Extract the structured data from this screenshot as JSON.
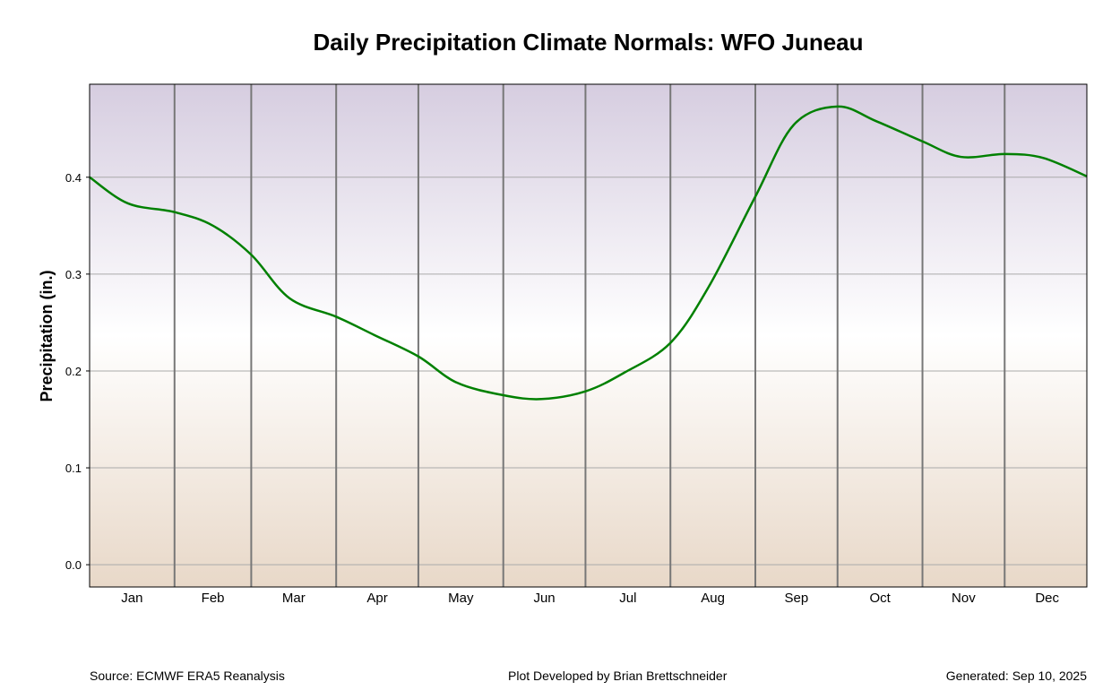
{
  "chart_data": {
    "type": "line",
    "title": "Daily Precipitation Climate Normals: WFO Juneau",
    "ylabel": "Precipitation (in.)",
    "xlabel": "",
    "ylim": [
      -0.023,
      0.496
    ],
    "yticks": [
      "0.0",
      "0.1",
      "0.2",
      "0.3",
      "0.4"
    ],
    "months": [
      "Jan",
      "Feb",
      "Mar",
      "Apr",
      "May",
      "Jun",
      "Jul",
      "Aug",
      "Sep",
      "Oct",
      "Nov",
      "Dec"
    ],
    "grid": "horizontal",
    "line_color": "#008000",
    "background_gradient": [
      "#d6cde0",
      "#ffffff",
      "#e8d8c8"
    ],
    "series": [
      {
        "day_of_year": [
          1,
          15,
          32,
          46,
          60,
          74,
          91,
          105,
          121,
          135,
          152,
          166,
          182,
          196,
          213,
          227,
          244,
          258,
          274,
          288,
          305,
          319,
          335,
          349,
          365
        ],
        "values": [
          0.4,
          0.373,
          0.364,
          0.35,
          0.32,
          0.275,
          0.256,
          0.237,
          0.215,
          0.188,
          0.175,
          0.171,
          0.179,
          0.198,
          0.229,
          0.287,
          0.38,
          0.454,
          0.473,
          0.458,
          0.437,
          0.421,
          0.424,
          0.42,
          0.401
        ]
      }
    ]
  },
  "footer": {
    "source": "Source: ECMWF ERA5 Reanalysis",
    "credit": "Plot Developed by Brian Brettschneider",
    "generated": "Generated: Sep 10, 2025"
  }
}
